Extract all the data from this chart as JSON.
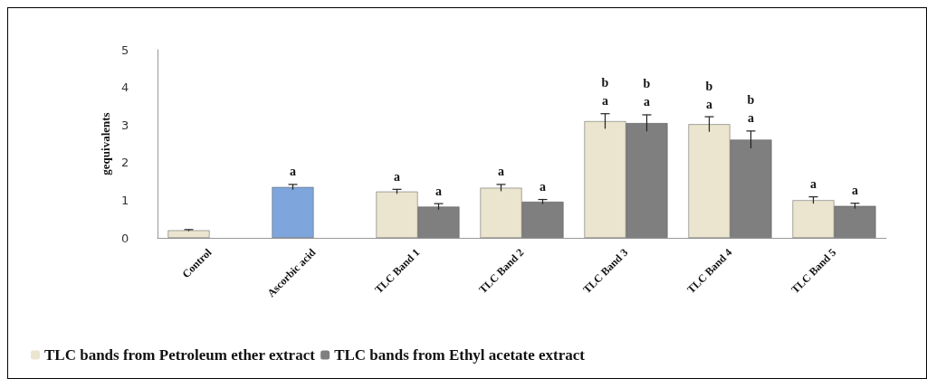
{
  "chart_data": {
    "type": "bar",
    "ylabel": "gequivalents",
    "categories": [
      "Control",
      "Ascorbic acid",
      "TLC Band 1",
      "TLC Band 2",
      "TLC Band 3",
      "TLC Band 4",
      "TLC Band 5"
    ],
    "ylim": [
      0,
      5
    ],
    "yticks": [
      0,
      1,
      2,
      3,
      4,
      5
    ],
    "grid": false,
    "legend": "bottom",
    "series": [
      {
        "name": "TLC bands from Petroleum ether extract",
        "color": "#ebe5cf",
        "colors": [
          "#ebe5cf",
          "#7ea6dc",
          "#ebe5cf",
          "#ebe5cf",
          "#ebe5cf",
          "#ebe5cf",
          "#ebe5cf"
        ],
        "values": [
          0.2,
          1.35,
          1.23,
          1.33,
          3.1,
          3.02,
          1.0
        ],
        "errors": [
          0.02,
          0.07,
          0.06,
          0.09,
          0.2,
          0.2,
          0.09
        ],
        "value_labels": [
          null,
          "a",
          "a",
          "a",
          "b\na",
          "b\na",
          "a"
        ]
      },
      {
        "name": "TLC bands from Ethyl acetate extract",
        "color": "#7f7f7f",
        "values": [
          null,
          null,
          0.83,
          0.96,
          3.05,
          2.61,
          0.85
        ],
        "errors": [
          null,
          null,
          0.08,
          0.06,
          0.22,
          0.23,
          0.07
        ],
        "value_labels": [
          null,
          null,
          "a",
          "a",
          "b\na",
          "b\na",
          "a"
        ]
      }
    ]
  }
}
